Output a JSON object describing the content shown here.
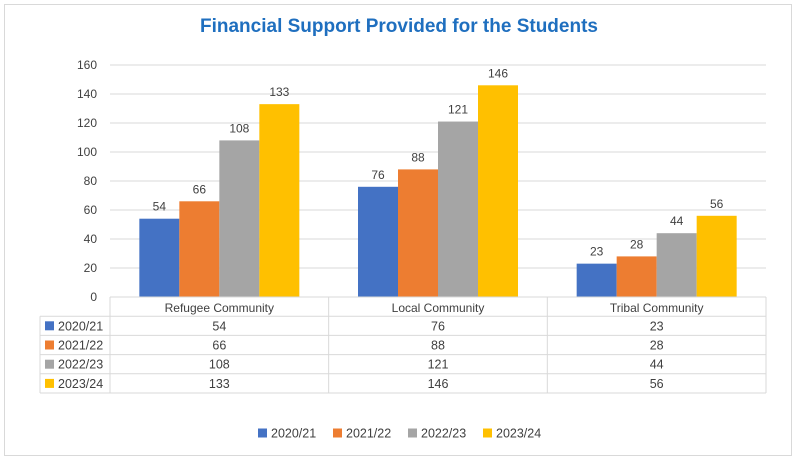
{
  "chart_data": {
    "type": "bar",
    "title": "Financial Support Provided for the Students",
    "categories": [
      "Refugee Community",
      "Local Community",
      "Tribal Community"
    ],
    "series": [
      {
        "name": "2020/21",
        "color": "#4472c4",
        "values": [
          54,
          76,
          23
        ]
      },
      {
        "name": "2021/22",
        "color": "#ed7d31",
        "values": [
          66,
          88,
          28
        ]
      },
      {
        "name": "2022/23",
        "color": "#a5a5a5",
        "values": [
          108,
          121,
          44
        ]
      },
      {
        "name": "2023/24",
        "color": "#ffc000",
        "values": [
          133,
          146,
          56
        ]
      }
    ],
    "ylim": [
      0,
      160
    ],
    "yticks": [
      0,
      20,
      40,
      60,
      80,
      100,
      120,
      140,
      160
    ],
    "grid": true,
    "data_labels": true,
    "data_table": true,
    "legend_position": "bottom"
  }
}
